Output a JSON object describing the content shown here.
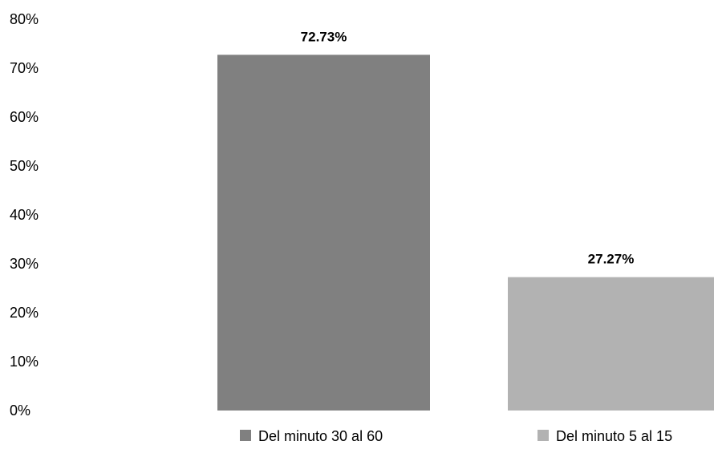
{
  "chart_data": {
    "type": "bar",
    "title": "",
    "xlabel": "",
    "ylabel": "",
    "ylim": [
      0,
      80
    ],
    "y_ticks": [
      "0%",
      "10%",
      "20%",
      "30%",
      "40%",
      "50%",
      "60%",
      "70%",
      "80%"
    ],
    "grid": false,
    "legend_position": "bottom",
    "series": [
      {
        "name": "Del minuto 30 al 60",
        "value": 72.73,
        "label": "72.73%",
        "color": "#808080"
      },
      {
        "name": "Del minuto 5 al 15",
        "value": 27.27,
        "label": "27.27%",
        "color": "#b2b2b2"
      }
    ]
  }
}
